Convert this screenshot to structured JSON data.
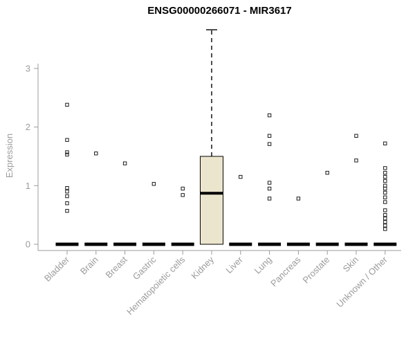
{
  "chart_data": {
    "type": "boxplot",
    "title": "ENSG00000266071 - MIR3617",
    "ylabel": "Expression",
    "ylim": [
      0,
      3.8
    ],
    "yticks": [
      0,
      1,
      2,
      3
    ],
    "box_fill": "#ece5cd",
    "axis_color": "#9b9b9b",
    "categories": [
      "Bladder",
      "Brain",
      "Breast",
      "Gastric",
      "Hematopoietic cells",
      "Kidney",
      "Liver",
      "Lung",
      "Pancreas",
      "Prostate",
      "Skin",
      "Unknown / Other"
    ],
    "boxes": [
      {
        "category": "Bladder",
        "q1": 0,
        "median": 0,
        "q3": 0,
        "whisker_low": 0,
        "whisker_high": 0,
        "outliers": [
          2.38,
          1.78,
          1.57,
          1.53,
          0.96,
          0.9,
          0.82,
          0.7,
          0.57
        ]
      },
      {
        "category": "Brain",
        "q1": 0,
        "median": 0,
        "q3": 0,
        "whisker_low": 0,
        "whisker_high": 0,
        "outliers": [
          1.55
        ]
      },
      {
        "category": "Breast",
        "q1": 0,
        "median": 0,
        "q3": 0,
        "whisker_low": 0,
        "whisker_high": 0,
        "outliers": [
          1.38
        ]
      },
      {
        "category": "Gastric",
        "q1": 0,
        "median": 0,
        "q3": 0,
        "whisker_low": 0,
        "whisker_high": 0,
        "outliers": [
          1.03
        ]
      },
      {
        "category": "Hematopoietic cells",
        "q1": 0,
        "median": 0,
        "q3": 0,
        "whisker_low": 0,
        "whisker_high": 0,
        "outliers": [
          0.95,
          0.84
        ]
      },
      {
        "category": "Kidney",
        "q1": 0,
        "median": 0.87,
        "q3": 1.5,
        "whisker_low": 0,
        "whisker_high": 3.66,
        "outliers": []
      },
      {
        "category": "Liver",
        "q1": 0,
        "median": 0,
        "q3": 0,
        "whisker_low": 0,
        "whisker_high": 0,
        "outliers": [
          1.15
        ]
      },
      {
        "category": "Lung",
        "q1": 0,
        "median": 0,
        "q3": 0,
        "whisker_low": 0,
        "whisker_high": 0,
        "outliers": [
          2.2,
          1.85,
          1.71,
          1.05,
          0.95,
          0.78
        ]
      },
      {
        "category": "Pancreas",
        "q1": 0,
        "median": 0,
        "q3": 0,
        "whisker_low": 0,
        "whisker_high": 0,
        "outliers": [
          0.78
        ]
      },
      {
        "category": "Prostate",
        "q1": 0,
        "median": 0,
        "q3": 0,
        "whisker_low": 0,
        "whisker_high": 0,
        "outliers": [
          1.22
        ]
      },
      {
        "category": "Skin",
        "q1": 0,
        "median": 0,
        "q3": 0,
        "whisker_low": 0,
        "whisker_high": 0,
        "outliers": [
          1.85,
          1.43
        ]
      },
      {
        "category": "Unknown / Other",
        "q1": 0,
        "median": 0,
        "q3": 0,
        "whisker_low": 0,
        "whisker_high": 0,
        "outliers": [
          1.72,
          1.3,
          1.22,
          1.15,
          1.08,
          1.0,
          0.95,
          0.88,
          0.8,
          0.72,
          0.58,
          0.5,
          0.44,
          0.38,
          0.32,
          0.26
        ]
      }
    ]
  }
}
